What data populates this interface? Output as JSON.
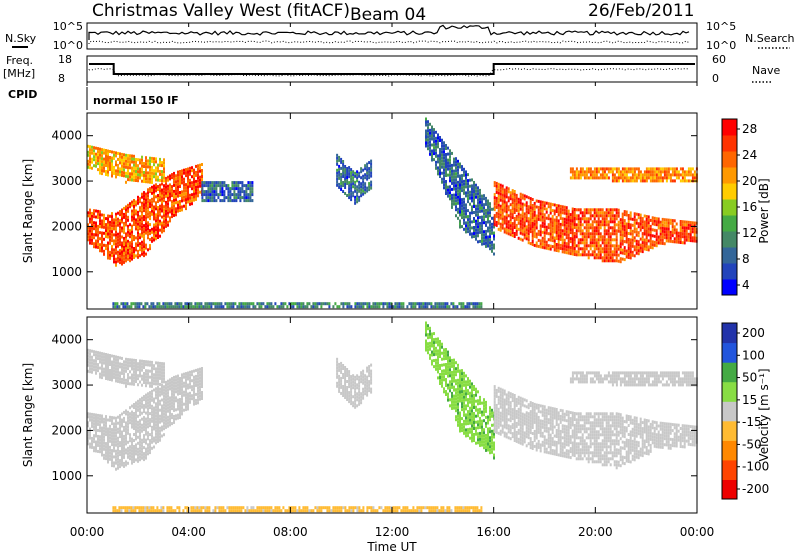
{
  "header": {
    "station": "Christmas Valley West (fitACF)",
    "beam": "Beam 04",
    "date": "26/Feb/2011"
  },
  "top_panel": {
    "left_label_1": "N.Sky",
    "left_label_2": "Freq.",
    "left_label_3": "[MHz]",
    "left_label_4": "CPID",
    "left_ticks_noise": [
      "10^5",
      "10^0"
    ],
    "left_ticks_freq": [
      "18",
      "8"
    ],
    "right_label_1": "N.Search",
    "right_label_2": "Nave",
    "right_ticks_noise": [
      "10^5",
      "10^0"
    ],
    "right_ticks_nave": [
      "60",
      "0"
    ],
    "cpid_text": "normal 150 IF"
  },
  "power_panel": {
    "ylabel": "Slant Range [km]",
    "yticks": [
      "4000",
      "3000",
      "2000",
      "1000"
    ],
    "colorbar_label": "Power [dB]",
    "colorbar_ticks": [
      "28",
      "24",
      "20",
      "16",
      "12",
      "8",
      "4"
    ],
    "colorbar_colors": [
      "#0000ff",
      "#2244bb",
      "#336699",
      "#448866",
      "#44aa44",
      "#88cc22",
      "#ffcc00",
      "#ff9900",
      "#ff6600",
      "#ff3300",
      "#ff0000"
    ]
  },
  "velocity_panel": {
    "ylabel": "Slant Range [km]",
    "yticks": [
      "4000",
      "3000",
      "2000",
      "1000"
    ],
    "colorbar_label": "Velocity [m s⁻¹]",
    "colorbar_ticks": [
      "200",
      "100",
      "50",
      "15",
      "-15",
      "-50",
      "-100",
      "-200"
    ],
    "colorbar_colors": [
      "#2233aa",
      "#2255dd",
      "#44aa44",
      "#88dd44",
      "#c8c8c8",
      "#ffbb33",
      "#ff8800",
      "#ff4400",
      "#ee0000"
    ]
  },
  "xaxis": {
    "ticks": [
      "00:00",
      "04:00",
      "08:00",
      "12:00",
      "16:00",
      "20:00",
      "00:00"
    ],
    "label": "Time UT"
  },
  "chart_data": [
    {
      "type": "heatmap",
      "title": "Christmas Valley West (fitACF)",
      "xlabel": "Time UT",
      "ylabel": "Slant Range [km]",
      "x_range_hours": [
        0,
        24
      ],
      "ylim": [
        180,
        4500
      ],
      "colorbar": {
        "label": "Power [dB]",
        "range": [
          0,
          30
        ],
        "ticks": [
          4,
          8,
          12,
          16,
          20,
          24,
          28
        ]
      },
      "regions": [
        {
          "t0": 0.0,
          "t1": 4.5,
          "r_lo": [
            1700,
            1150,
            1400,
            2200,
            2700
          ],
          "r_hi": [
            2400,
            2300,
            2800,
            3200,
            3400
          ],
          "value": 26
        },
        {
          "t0": 0.0,
          "t1": 3.0,
          "r_lo": [
            3300,
            3000,
            3000
          ],
          "r_hi": [
            3800,
            3600,
            3500
          ],
          "value": 20
        },
        {
          "t0": 4.5,
          "t1": 6.5,
          "r_lo": [
            2600,
            2600,
            2600
          ],
          "r_hi": [
            3000,
            3000,
            3000
          ],
          "value": 6
        },
        {
          "t0": 9.8,
          "t1": 11.2,
          "r_lo": [
            2900,
            2500,
            2900
          ],
          "r_hi": [
            3600,
            3200,
            3500
          ],
          "value": 6
        },
        {
          "t0": 13.3,
          "t1": 16.0,
          "r_lo": [
            3800,
            2000,
            1400
          ],
          "r_hi": [
            4400,
            3400,
            2400
          ],
          "value": 6
        },
        {
          "t0": 16.0,
          "t1": 24.0,
          "r_lo": [
            2000,
            1600,
            1400,
            1200,
            1600,
            1700
          ],
          "r_hi": [
            3000,
            2600,
            2400,
            2400,
            2200,
            2100
          ],
          "value": 26
        },
        {
          "t0": 19.0,
          "t1": 24.0,
          "r_lo": [
            3100,
            3000,
            3000
          ],
          "r_hi": [
            3300,
            3300,
            3300
          ],
          "value": 22
        },
        {
          "t0": 1.0,
          "t1": 15.5,
          "r_lo": [
            200,
            200,
            200
          ],
          "r_hi": [
            330,
            330,
            330
          ],
          "value": 8
        }
      ]
    },
    {
      "type": "heatmap",
      "title": "",
      "xlabel": "Time UT",
      "ylabel": "Slant Range [km]",
      "x_range_hours": [
        0,
        24
      ],
      "ylim": [
        180,
        4500
      ],
      "colorbar": {
        "label": "Velocity [m s⁻¹]",
        "range": [
          -200,
          200
        ],
        "ticks": [
          -200,
          -100,
          -50,
          -15,
          15,
          50,
          100,
          200
        ]
      },
      "regions": [
        {
          "t0": 0.0,
          "t1": 4.5,
          "r_lo": [
            1700,
            1150,
            1400,
            2200,
            2700
          ],
          "r_hi": [
            2400,
            2300,
            2800,
            3200,
            3400
          ],
          "value": 0
        },
        {
          "t0": 0.0,
          "t1": 3.0,
          "r_lo": [
            3300,
            3000,
            3000
          ],
          "r_hi": [
            3800,
            3600,
            3500
          ],
          "value": 0
        },
        {
          "t0": 9.8,
          "t1": 11.2,
          "r_lo": [
            2900,
            2500,
            2900
          ],
          "r_hi": [
            3600,
            3200,
            3500
          ],
          "value": 0
        },
        {
          "t0": 13.3,
          "t1": 16.0,
          "r_lo": [
            3800,
            2000,
            1400
          ],
          "r_hi": [
            4400,
            3400,
            2400
          ],
          "value": 60
        },
        {
          "t0": 16.0,
          "t1": 24.0,
          "r_lo": [
            2000,
            1600,
            1400,
            1200,
            1600,
            1700
          ],
          "r_hi": [
            3000,
            2600,
            2400,
            2400,
            2200,
            2100
          ],
          "value": 0
        },
        {
          "t0": 19.0,
          "t1": 24.0,
          "r_lo": [
            3100,
            3000,
            3000
          ],
          "r_hi": [
            3300,
            3300,
            3300
          ],
          "value": 0
        },
        {
          "t0": 1.0,
          "t1": 15.5,
          "r_lo": [
            200,
            200,
            200
          ],
          "r_hi": [
            330,
            330,
            330
          ],
          "value": -40
        }
      ]
    }
  ]
}
